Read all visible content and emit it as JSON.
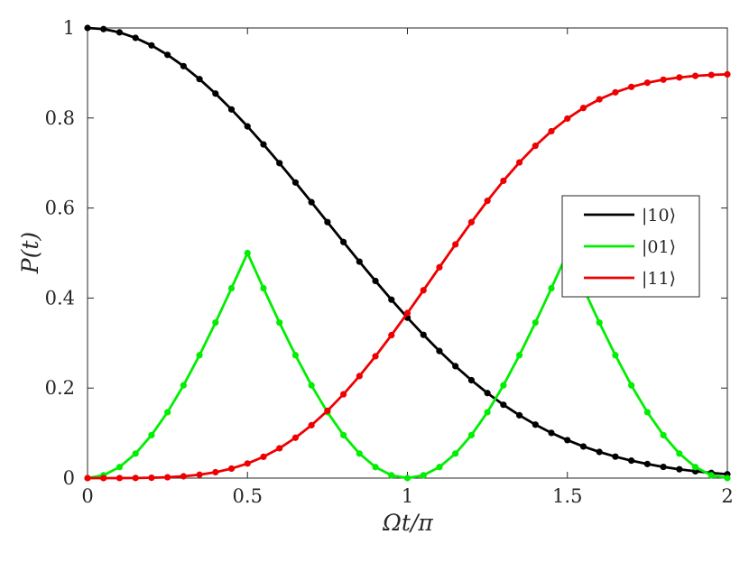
{
  "chart_data": {
    "type": "line",
    "title": "",
    "xlabel": "Ωt/π",
    "ylabel": "P(t)",
    "xlim": [
      0,
      2
    ],
    "ylim": [
      0,
      1
    ],
    "xticks": [
      0,
      0.5,
      1,
      1.5,
      2
    ],
    "yticks": [
      0,
      0.2,
      0.4,
      0.6,
      0.8,
      1
    ],
    "xtick_labels": [
      "0",
      "0.5",
      "1",
      "1.5",
      "2"
    ],
    "ytick_labels": [
      "0",
      "0.2",
      "0.4",
      "0.6",
      "0.8",
      "1"
    ],
    "grid": false,
    "legend_position": "right",
    "x": [
      0,
      0.05,
      0.1,
      0.15,
      0.2,
      0.25,
      0.3,
      0.35,
      0.4,
      0.45,
      0.5,
      0.55,
      0.6,
      0.65,
      0.7,
      0.75,
      0.8,
      0.85,
      0.9,
      0.95,
      1,
      1.05,
      1.1,
      1.15,
      1.2,
      1.25,
      1.3,
      1.35,
      1.4,
      1.45,
      1.5,
      1.55,
      1.6,
      1.65,
      1.7,
      1.75,
      1.8,
      1.85,
      1.9,
      1.95,
      2
    ],
    "series": [
      {
        "name": "|10⟩",
        "color": "#000000",
        "values": [
          1.0,
          0.9975,
          0.9902,
          0.978,
          0.9613,
          0.9403,
          0.9152,
          0.8864,
          0.8542,
          0.819,
          0.7813,
          0.7413,
          0.6997,
          0.6567,
          0.6129,
          0.5687,
          0.5245,
          0.4808,
          0.438,
          0.3964,
          0.3564,
          0.3183,
          0.2823,
          0.2487,
          0.2175,
          0.1889,
          0.1629,
          0.1396,
          0.1188,
          0.1004,
          0.0843,
          0.0703,
          0.0581,
          0.0477,
          0.0388,
          0.0313,
          0.0249,
          0.0196,
          0.0152,
          0.0115,
          0.0085
        ]
      },
      {
        "name": "|01⟩",
        "color": "#00ee00",
        "values": [
          0.0,
          0.0062,
          0.0245,
          0.0545,
          0.0955,
          0.1464,
          0.2061,
          0.273,
          0.3455,
          0.4218,
          0.5,
          0.4218,
          0.3455,
          0.273,
          0.2061,
          0.1464,
          0.0955,
          0.0545,
          0.0245,
          0.0062,
          0.0,
          0.0062,
          0.0245,
          0.0545,
          0.0955,
          0.1464,
          0.2061,
          0.273,
          0.3455,
          0.4218,
          0.5,
          0.4218,
          0.3455,
          0.273,
          0.2061,
          0.1464,
          0.0955,
          0.0545,
          0.0245,
          0.0062,
          0.0
        ]
      },
      {
        "name": "|11⟩",
        "color": "#ee0000",
        "values": [
          0.0,
          0.0,
          0.0001,
          0.0003,
          0.0008,
          0.0019,
          0.004,
          0.0075,
          0.013,
          0.0211,
          0.0324,
          0.0473,
          0.0663,
          0.0897,
          0.1175,
          0.1497,
          0.1863,
          0.2267,
          0.2707,
          0.3176,
          0.3667,
          0.4173,
          0.4684,
          0.5192,
          0.5686,
          0.616,
          0.6604,
          0.7013,
          0.7382,
          0.7707,
          0.7987,
          0.8222,
          0.8415,
          0.857,
          0.8691,
          0.8783,
          0.8852,
          0.8901,
          0.8935,
          0.8957,
          0.897
        ]
      }
    ]
  }
}
